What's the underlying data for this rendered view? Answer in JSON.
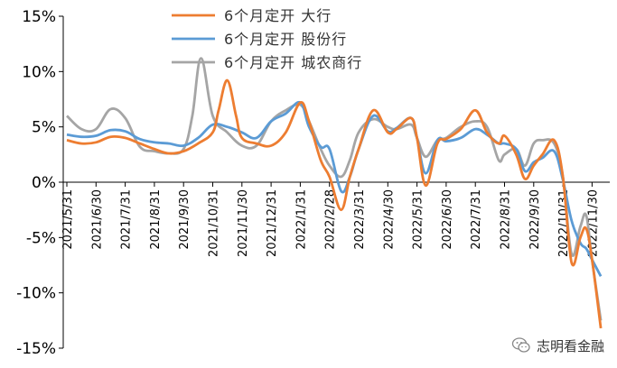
{
  "chart_data": {
    "type": "line",
    "title": "",
    "xlabel": "",
    "ylabel": "",
    "ylim": [
      -15,
      15
    ],
    "y_ticks": [
      "15%",
      "10%",
      "5%",
      "0%",
      "-5%",
      "-10%",
      "-15%"
    ],
    "y_tick_values": [
      15,
      10,
      5,
      0,
      -5,
      -10,
      -15
    ],
    "x_ticks": [
      "2021/5/31",
      "2021/6/30",
      "2021/7/31",
      "2021/8/31",
      "2021/9/30",
      "2021/10/31",
      "2021/11/30",
      "2021/12/31",
      "2022/1/31",
      "2022/2/28",
      "2022/3/31",
      "2022/4/30",
      "2022/5/31",
      "2022/6/30",
      "2022/7/31",
      "2022/8/31",
      "2022/9/30",
      "2022/10/31",
      "2022/11/30"
    ],
    "legend_position": "top-center",
    "grid": false,
    "series": [
      {
        "name": "6个月定开 大行",
        "color": "#ED7D31",
        "points": [
          [
            0,
            3.8
          ],
          [
            0.5,
            3.5
          ],
          [
            1,
            3.6
          ],
          [
            1.5,
            4.1
          ],
          [
            2,
            4.0
          ],
          [
            2.5,
            3.5
          ],
          [
            3,
            3.0
          ],
          [
            3.5,
            2.6
          ],
          [
            4,
            2.8
          ],
          [
            4.5,
            3.5
          ],
          [
            5,
            4.5
          ],
          [
            5.2,
            6.5
          ],
          [
            5.5,
            9.2
          ],
          [
            5.8,
            6.0
          ],
          [
            6,
            4.0
          ],
          [
            6.5,
            3.5
          ],
          [
            7,
            3.3
          ],
          [
            7.5,
            4.5
          ],
          [
            8,
            7.2
          ],
          [
            8.3,
            5.5
          ],
          [
            8.7,
            2.0
          ],
          [
            9,
            0.5
          ],
          [
            9.4,
            -2.5
          ],
          [
            9.7,
            0.5
          ],
          [
            10,
            3.0
          ],
          [
            10.5,
            6.5
          ],
          [
            11,
            4.5
          ],
          [
            11.3,
            4.8
          ],
          [
            11.8,
            5.8
          ],
          [
            12,
            4.0
          ],
          [
            12.3,
            -0.3
          ],
          [
            12.7,
            3.5
          ],
          [
            13,
            3.9
          ],
          [
            13.5,
            4.8
          ],
          [
            14,
            6.5
          ],
          [
            14.4,
            4.5
          ],
          [
            14.8,
            3.5
          ],
          [
            15,
            4.2
          ],
          [
            15.4,
            2.5
          ],
          [
            15.7,
            0.3
          ],
          [
            16,
            1.5
          ],
          [
            16.3,
            2.5
          ],
          [
            16.7,
            3.8
          ],
          [
            17,
            0.5
          ],
          [
            17.3,
            -7.3
          ],
          [
            17.6,
            -5.0
          ],
          [
            17.8,
            -4.2
          ],
          [
            18,
            -7.0
          ],
          [
            18.3,
            -13.2
          ]
        ]
      },
      {
        "name": "6个月定开 股份行",
        "color": "#5B9BD5",
        "points": [
          [
            0,
            4.3
          ],
          [
            0.5,
            4.1
          ],
          [
            1,
            4.2
          ],
          [
            1.5,
            4.7
          ],
          [
            2,
            4.6
          ],
          [
            2.5,
            3.9
          ],
          [
            3,
            3.6
          ],
          [
            3.5,
            3.5
          ],
          [
            4,
            3.3
          ],
          [
            4.5,
            4.0
          ],
          [
            5,
            5.2
          ],
          [
            5.5,
            5.0
          ],
          [
            6,
            4.5
          ],
          [
            6.5,
            4.0
          ],
          [
            7,
            5.5
          ],
          [
            7.5,
            6.2
          ],
          [
            8,
            7.2
          ],
          [
            8.3,
            5.0
          ],
          [
            8.7,
            3.2
          ],
          [
            9,
            3.0
          ],
          [
            9.4,
            -0.8
          ],
          [
            9.7,
            0.5
          ],
          [
            10,
            3.0
          ],
          [
            10.5,
            6.0
          ],
          [
            11,
            4.6
          ],
          [
            11.3,
            4.9
          ],
          [
            11.8,
            5.8
          ],
          [
            12,
            4.0
          ],
          [
            12.3,
            0.8
          ],
          [
            12.7,
            3.8
          ],
          [
            13,
            3.7
          ],
          [
            13.5,
            4.0
          ],
          [
            14,
            4.8
          ],
          [
            14.4,
            4.3
          ],
          [
            14.8,
            3.5
          ],
          [
            15,
            3.5
          ],
          [
            15.4,
            3.0
          ],
          [
            15.7,
            1.0
          ],
          [
            16,
            1.8
          ],
          [
            16.3,
            2.2
          ],
          [
            16.7,
            2.8
          ],
          [
            17,
            0.2
          ],
          [
            17.3,
            -3.5
          ],
          [
            17.6,
            -5.5
          ],
          [
            17.8,
            -6.0
          ],
          [
            18,
            -7.0
          ],
          [
            18.3,
            -8.5
          ]
        ]
      },
      {
        "name": "6个月定开 城农商行",
        "color": "#A5A5A5",
        "points": [
          [
            0,
            6.0
          ],
          [
            0.5,
            4.8
          ],
          [
            1,
            4.8
          ],
          [
            1.5,
            6.6
          ],
          [
            2,
            5.8
          ],
          [
            2.5,
            3.2
          ],
          [
            3,
            2.8
          ],
          [
            3.5,
            2.6
          ],
          [
            4,
            3.0
          ],
          [
            4.3,
            6.0
          ],
          [
            4.6,
            11.2
          ],
          [
            5,
            6.0
          ],
          [
            5.5,
            4.5
          ],
          [
            6,
            3.3
          ],
          [
            6.5,
            3.3
          ],
          [
            7,
            5.5
          ],
          [
            7.5,
            6.5
          ],
          [
            8,
            7.0
          ],
          [
            8.3,
            5.5
          ],
          [
            8.7,
            3.0
          ],
          [
            9,
            1.5
          ],
          [
            9.4,
            0.5
          ],
          [
            9.7,
            2.0
          ],
          [
            10,
            4.5
          ],
          [
            10.5,
            5.7
          ],
          [
            11,
            5.0
          ],
          [
            11.3,
            4.8
          ],
          [
            11.8,
            5.2
          ],
          [
            12,
            4.0
          ],
          [
            12.3,
            2.3
          ],
          [
            12.7,
            3.8
          ],
          [
            13,
            4.0
          ],
          [
            13.5,
            5.0
          ],
          [
            14,
            5.5
          ],
          [
            14.4,
            5.0
          ],
          [
            14.8,
            2.0
          ],
          [
            15,
            2.5
          ],
          [
            15.4,
            3.0
          ],
          [
            15.7,
            1.5
          ],
          [
            16,
            3.5
          ],
          [
            16.3,
            3.8
          ],
          [
            16.7,
            3.5
          ],
          [
            17,
            0.5
          ],
          [
            17.3,
            -6.5
          ],
          [
            17.6,
            -4.0
          ],
          [
            17.8,
            -3.0
          ],
          [
            18,
            -7.0
          ],
          [
            18.3,
            -12.5
          ]
        ]
      }
    ]
  },
  "watermark": {
    "text": "志明看金融",
    "icon": "wechat-icon"
  }
}
